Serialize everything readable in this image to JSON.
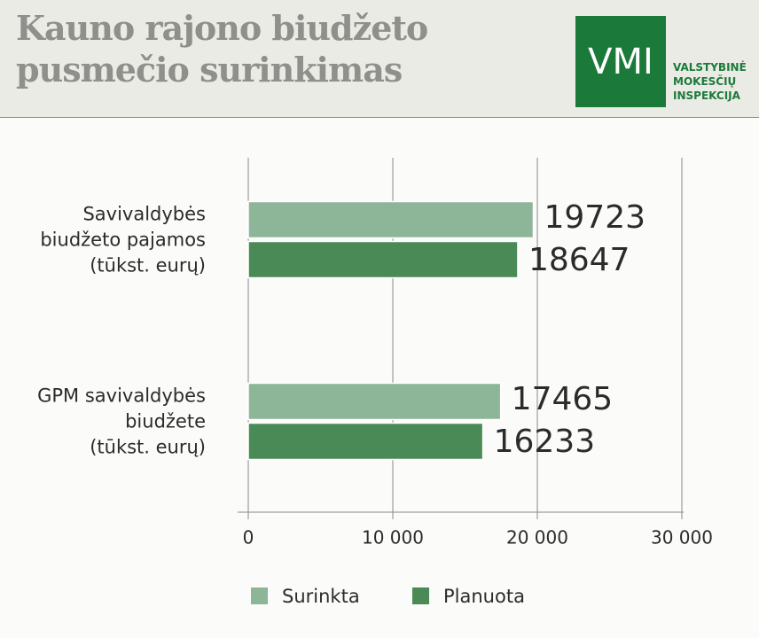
{
  "header": {
    "title": "Kauno rajono biudžeto pusmečio surinkimas"
  },
  "logo": {
    "mark": "VMI",
    "lines": [
      "VALSTYBINĖ",
      "MOKESČIŲ",
      "INSPEKCIJA"
    ]
  },
  "chart_data": {
    "type": "hbar",
    "categories": [
      "Savivaldybės\nbiudžeto pajamos\n(tūkst. eurų)",
      "GPM savivaldybės\nbiudžete\n(tūkst. eurų)"
    ],
    "series": [
      {
        "name": "Surinkta",
        "color": "#8db597",
        "values": [
          19723,
          17465
        ]
      },
      {
        "name": "Planuota",
        "color": "#4a8a57",
        "values": [
          18647,
          16233
        ]
      }
    ],
    "xlim": [
      0,
      30000
    ],
    "xticks": [
      0,
      {
        "value": 10000,
        "label": "10 000"
      },
      {
        "value": 20000,
        "label": "20 000"
      },
      {
        "value": 30000,
        "label": "30 000"
      }
    ],
    "grid": true
  }
}
